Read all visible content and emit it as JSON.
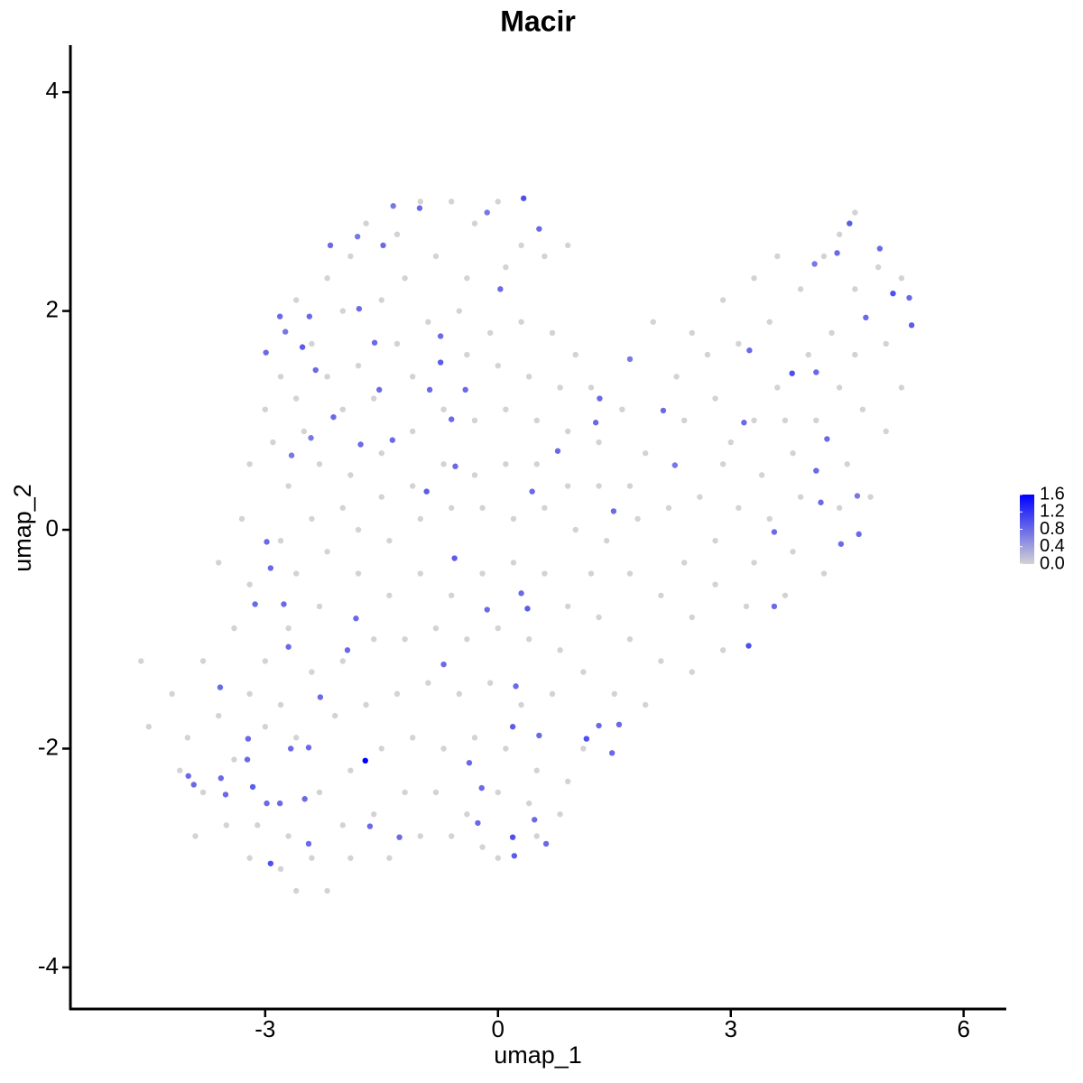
{
  "chart_data": {
    "type": "scatter",
    "title": "Macir",
    "x_label": "umap_1",
    "y_label": "umap_2",
    "xlim": [
      -5.51,
      6.55
    ],
    "ylim": [
      -4.38,
      4.43
    ],
    "xticks": [
      -3,
      0,
      3,
      6
    ],
    "yticks": [
      -4,
      -2,
      0,
      2,
      4
    ],
    "colorbar": {
      "lim": [
        0,
        1.6
      ],
      "low_color": "#d3d3d3",
      "high_color": "#0000ff",
      "ticks": [
        {
          "value": 0,
          "label": "0.0"
        },
        {
          "value": 0.4,
          "label": "0.4"
        },
        {
          "value": 0.8,
          "label": "0.8"
        },
        {
          "value": 1.2,
          "label": "1.2"
        },
        {
          "value": 1.6,
          "label": "1.6"
        }
      ]
    },
    "x": [
      -2.6,
      -2.2,
      -1.9,
      -1.7,
      -1.3,
      -1.0,
      -0.6,
      -0.3,
      0.0,
      0.3,
      0.6,
      0.9,
      -0.8,
      -0.4,
      0.1,
      -1.2,
      -1.5,
      -2.0,
      -2.4,
      -2.8,
      -3.0,
      -2.6,
      -2.2,
      -1.8,
      -1.3,
      -0.9,
      -0.5,
      -0.1,
      0.3,
      0.7,
      1.0,
      0.8,
      0.4,
      0.0,
      -0.4,
      -1.1,
      -1.6,
      -2.0,
      -2.5,
      -2.9,
      -3.2,
      -2.7,
      -2.3,
      -1.9,
      -1.5,
      -1.1,
      -0.7,
      -0.3,
      0.1,
      0.5,
      0.9,
      1.3,
      1.2,
      1.6,
      1.9,
      1.7,
      1.3,
      0.9,
      0.5,
      0.1,
      -0.3,
      -0.7,
      -1.1,
      -1.5,
      -2.0,
      -2.4,
      -2.8,
      -3.3,
      -3.6,
      -3.2,
      -2.6,
      -2.2,
      -1.8,
      -1.4,
      -1.0,
      -0.6,
      -0.2,
      0.2,
      0.6,
      1.0,
      1.4,
      1.8,
      2.2,
      2.6,
      2.9,
      2.4,
      2.8,
      2.7,
      2.3,
      2.0,
      2.5,
      2.9,
      3.3,
      3.6,
      3.9,
      3.5,
      3.1,
      3.6,
      3.3,
      3.0,
      3.4,
      3.8,
      4.1,
      4.4,
      4.7,
      5.0,
      5.2,
      5.0,
      4.6,
      4.3,
      4.6,
      4.9,
      5.2,
      4.4,
      4.6,
      4.2,
      4.0,
      3.7,
      4.5,
      4.8,
      4.4,
      3.9,
      3.5,
      3.1,
      2.8,
      3.3,
      3.8,
      4.2,
      3.7,
      3.2,
      2.8,
      2.4,
      2.5,
      2.1,
      2.9,
      2.5,
      2.1,
      1.7,
      1.9,
      1.5,
      1.1,
      1.3,
      0.9,
      1.7,
      1.2,
      0.6,
      0.2,
      -0.2,
      -0.6,
      -1.0,
      -1.4,
      -1.8,
      -2.3,
      -2.7,
      -3.0,
      -3.4,
      -3.8,
      -4.2,
      -4.6,
      -4.5,
      -4.0,
      -3.6,
      -3.2,
      -2.8,
      -2.4,
      -2.0,
      -1.6,
      -1.2,
      -0.8,
      -0.4,
      0.0,
      0.4,
      0.8,
      0.7,
      0.3,
      -0.1,
      -0.5,
      -0.9,
      -1.3,
      -1.7,
      -2.1,
      -2.6,
      -3.0,
      -3.4,
      -3.8,
      -4.1,
      -3.9,
      -3.5,
      -3.1,
      -2.7,
      -2.3,
      -1.9,
      -1.5,
      -1.1,
      -0.7,
      -0.3,
      0.1,
      0.5,
      0.9,
      1.1,
      0.8,
      0.4,
      0.0,
      -0.4,
      -0.8,
      -1.2,
      -1.6,
      -2.0,
      -2.4,
      -2.8,
      -3.2,
      -2.6,
      -2.2,
      -1.9,
      -1.4,
      -1.0,
      -0.6,
      0.0,
      0.5,
      -0.2,
      0.33,
      0.53,
      0.03,
      -0.14,
      -1.01,
      -1.35,
      -1.48,
      -2.16,
      -1.81,
      -2.81,
      -2.43,
      -2.52,
      -2.99,
      -2.74,
      -2.35,
      -1.79,
      -1.59,
      -0.74,
      -0.74,
      -0.88,
      -0.42,
      -1.53,
      -2.12,
      -1.77,
      -1.36,
      -2.66,
      -2.41,
      -0.6,
      -0.92,
      -0.55,
      0.44,
      0.77,
      1.26,
      1.31,
      1.7,
      2.13,
      2.28,
      1.49,
      0.3,
      0.38,
      -0.56,
      -0.14,
      -0.7,
      0.23,
      0.19,
      0.53,
      -0.37,
      -0.21,
      -0.26,
      0.19,
      0.21,
      0.62,
      0.47,
      1.14,
      1.3,
      1.56,
      1.47,
      3.17,
      3.24,
      3.79,
      3.56,
      3.56,
      3.23,
      4.1,
      4.24,
      4.1,
      4.16,
      4.42,
      4.65,
      4.63,
      4.74,
      4.92,
      4.53,
      4.37,
      4.08,
      5.09,
      5.3,
      5.33,
      -2.98,
      -2.93,
      -3.13,
      -2.76,
      -2.7,
      -3.58,
      -3.22,
      -3.23,
      -3.16,
      -2.98,
      -2.81,
      -2.67,
      -2.44,
      -2.49,
      -2.44,
      -2.93,
      -3.51,
      -3.99,
      -3.92,
      -3.57,
      -1.83,
      -1.94,
      -2.29,
      -1.65,
      -1.27,
      -1.71
    ],
    "y": [
      2.1,
      2.3,
      2.5,
      2.8,
      2.7,
      3.0,
      3.0,
      2.8,
      3.0,
      2.6,
      2.5,
      2.6,
      2.5,
      2.3,
      2.4,
      2.3,
      2.1,
      2.0,
      1.7,
      1.4,
      1.1,
      1.2,
      1.4,
      1.5,
      1.7,
      1.9,
      2.0,
      1.8,
      1.9,
      1.8,
      1.6,
      1.3,
      1.4,
      1.5,
      1.6,
      1.4,
      1.2,
      1.1,
      0.9,
      0.8,
      0.6,
      0.4,
      0.6,
      0.5,
      0.7,
      0.9,
      1.1,
      1.0,
      1.1,
      1.0,
      0.9,
      0.8,
      1.3,
      1.1,
      0.7,
      0.4,
      0.4,
      0.4,
      0.6,
      0.6,
      0.5,
      0.6,
      0.4,
      0.3,
      0.2,
      0.1,
      -0.1,
      0.1,
      -0.3,
      -0.5,
      -0.4,
      -0.2,
      0.0,
      -0.1,
      0.1,
      0.2,
      0.2,
      0.1,
      0.2,
      0.0,
      -0.1,
      0.1,
      0.2,
      0.3,
      0.6,
      1.0,
      1.2,
      1.6,
      1.4,
      1.9,
      1.8,
      2.1,
      2.3,
      2.5,
      2.2,
      1.9,
      1.7,
      1.3,
      1.0,
      0.8,
      0.5,
      0.7,
      1.0,
      1.3,
      1.1,
      0.9,
      1.3,
      1.7,
      1.6,
      1.8,
      2.2,
      2.4,
      2.3,
      2.7,
      2.9,
      2.5,
      1.6,
      1.0,
      0.6,
      0.3,
      0.2,
      0.3,
      0.1,
      0.2,
      -0.1,
      -0.3,
      -0.2,
      -0.4,
      -0.6,
      -0.7,
      -0.5,
      -0.3,
      -0.8,
      -0.6,
      -1.1,
      -1.3,
      -1.2,
      -1.0,
      -1.6,
      -1.5,
      -1.3,
      -0.8,
      -0.7,
      -0.4,
      -0.4,
      -0.4,
      -0.3,
      -0.4,
      -0.6,
      -0.4,
      -0.6,
      -0.4,
      -0.7,
      -0.9,
      -1.2,
      -0.9,
      -1.2,
      -1.5,
      -1.2,
      -1.8,
      -1.9,
      -1.7,
      -1.5,
      -1.6,
      -1.3,
      -1.2,
      -1.0,
      -1.0,
      -0.9,
      -1.0,
      -0.9,
      -1.0,
      -1.1,
      -1.5,
      -1.6,
      -1.4,
      -1.5,
      -1.4,
      -1.5,
      -1.6,
      -1.7,
      -1.9,
      -1.8,
      -2.1,
      -2.4,
      -2.2,
      -2.8,
      -2.7,
      -2.7,
      -2.8,
      -2.4,
      -2.2,
      -2.0,
      -1.9,
      -2.0,
      -1.9,
      -2.0,
      -2.2,
      -2.3,
      -2.0,
      -2.6,
      -2.5,
      -2.4,
      -2.6,
      -2.4,
      -2.4,
      -2.6,
      -2.7,
      -3.0,
      -3.1,
      -3.0,
      -3.3,
      -3.3,
      -3.0,
      -3.0,
      -2.8,
      -2.8,
      -3.0,
      -2.8,
      -2.9,
      3.03,
      2.75,
      2.2,
      2.9,
      2.94,
      2.96,
      2.6,
      2.6,
      2.68,
      1.95,
      1.95,
      1.67,
      1.62,
      1.81,
      1.46,
      2.02,
      1.71,
      1.77,
      1.53,
      1.28,
      1.28,
      1.28,
      1.03,
      0.78,
      0.82,
      0.68,
      0.84,
      1.01,
      0.35,
      0.58,
      0.35,
      0.72,
      0.98,
      1.2,
      1.56,
      1.09,
      0.59,
      0.17,
      -0.58,
      -0.72,
      -0.26,
      -0.73,
      -1.23,
      -1.43,
      -1.8,
      -1.88,
      -2.13,
      -2.36,
      -2.68,
      -2.81,
      -2.98,
      -2.87,
      -2.65,
      -1.91,
      -1.79,
      -1.78,
      -2.04,
      0.98,
      1.64,
      1.43,
      -0.02,
      -0.7,
      -1.06,
      1.44,
      0.83,
      0.54,
      0.25,
      -0.13,
      -0.04,
      0.31,
      1.94,
      2.57,
      2.8,
      2.53,
      2.43,
      2.16,
      2.12,
      1.87,
      -0.11,
      -0.35,
      -0.68,
      -0.68,
      -1.07,
      -1.44,
      -1.91,
      -2.1,
      -2.35,
      -2.5,
      -2.5,
      -2.0,
      -1.99,
      -2.46,
      -2.87,
      -3.05,
      -2.42,
      -2.25,
      -2.33,
      -2.27,
      -0.81,
      -1.1,
      -1.53,
      -2.71,
      -2.81,
      -2.11
    ],
    "values": [
      0,
      0,
      0,
      0,
      0,
      0,
      0,
      0,
      0,
      0,
      0,
      0,
      0,
      0,
      0,
      0,
      0,
      0,
      0,
      0,
      0,
      0,
      0,
      0,
      0,
      0,
      0,
      0,
      0,
      0,
      0,
      0,
      0,
      0,
      0,
      0,
      0,
      0,
      0,
      0,
      0,
      0,
      0,
      0,
      0,
      0,
      0,
      0,
      0,
      0,
      0,
      0,
      0,
      0,
      0,
      0,
      0,
      0,
      0,
      0,
      0,
      0,
      0,
      0,
      0,
      0,
      0,
      0,
      0,
      0,
      0,
      0,
      0,
      0,
      0,
      0,
      0,
      0,
      0,
      0,
      0,
      0,
      0,
      0,
      0,
      0,
      0,
      0,
      0,
      0,
      0,
      0,
      0,
      0,
      0,
      0,
      0,
      0,
      0,
      0,
      0,
      0,
      0,
      0,
      0,
      0,
      0,
      0,
      0,
      0,
      0,
      0,
      0,
      0,
      0,
      0,
      0,
      0,
      0,
      0,
      0,
      0,
      0,
      0,
      0,
      0,
      0,
      0,
      0,
      0,
      0,
      0,
      0,
      0,
      0,
      0,
      0,
      0,
      0,
      0,
      0,
      0,
      0,
      0,
      0,
      0,
      0,
      0,
      0,
      0,
      0,
      0,
      0,
      0,
      0,
      0,
      0,
      0,
      0,
      0,
      0,
      0,
      0,
      0,
      0,
      0,
      0,
      0,
      0,
      0,
      0,
      0,
      0,
      0,
      0,
      0,
      0,
      0,
      0,
      0,
      0,
      0,
      0,
      0,
      0,
      0,
      0,
      0,
      0,
      0,
      0,
      0,
      0,
      0,
      0,
      0,
      0,
      0,
      0,
      0,
      0,
      0,
      0,
      0,
      0,
      0,
      0,
      0,
      0,
      0,
      0,
      0,
      0,
      0,
      0,
      0,
      0,
      0,
      0,
      0,
      1.0,
      0.8,
      0.8,
      0.7,
      0.8,
      0.7,
      0.8,
      0.8,
      0.7,
      0.8,
      0.8,
      0.9,
      0.8,
      0.7,
      0.8,
      0.8,
      0.8,
      0.8,
      0.9,
      0.8,
      0.8,
      0.8,
      0.8,
      0.8,
      0.8,
      0.7,
      0.7,
      0.8,
      0.9,
      0.8,
      0.8,
      0.8,
      0.8,
      0.8,
      0.7,
      0.8,
      0.7,
      0.8,
      0.8,
      0.9,
      0.9,
      0.8,
      0.8,
      0.8,
      0.9,
      0.8,
      0.8,
      0.8,
      0.8,
      1.0,
      0.9,
      0.8,
      0.8,
      1.0,
      0.8,
      0.8,
      0.8,
      0.8,
      0.8,
      1.0,
      0.8,
      0.8,
      1.0,
      0.8,
      0.8,
      0.8,
      0.8,
      0.8,
      0.8,
      0.7,
      0.8,
      0.8,
      0.9,
      0.8,
      0.7,
      1.0,
      0.8,
      0.9,
      0.8,
      0.8,
      0.8,
      0.8,
      0.8,
      0.8,
      0.8,
      0.8,
      0.9,
      0.8,
      0.8,
      0.8,
      0.8,
      0.8,
      0.8,
      1.0,
      0.8,
      0.8,
      0.8,
      0.8,
      0.8,
      0.8,
      0.8,
      0.8,
      0.8,
      1.6
    ]
  }
}
